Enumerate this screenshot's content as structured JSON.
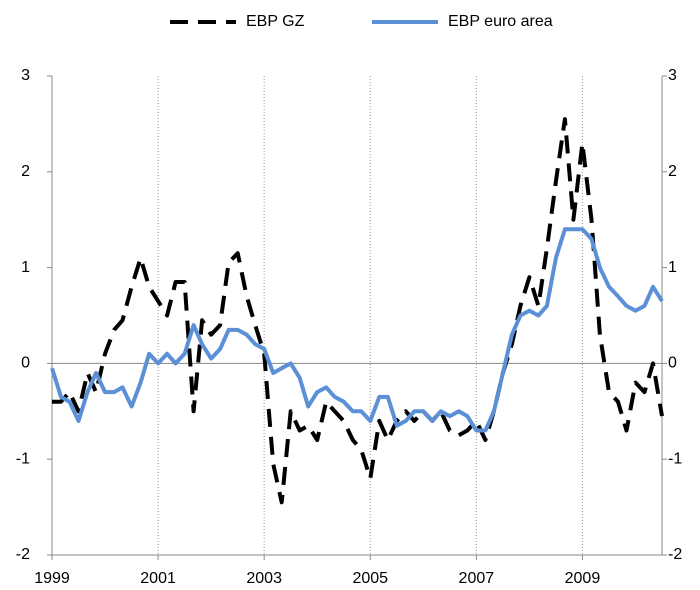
{
  "chart_data": {
    "type": "line",
    "x": [
      1999.0,
      1999.17,
      1999.33,
      1999.5,
      1999.67,
      1999.83,
      2000.0,
      2000.17,
      2000.33,
      2000.5,
      2000.67,
      2000.83,
      2001.0,
      2001.17,
      2001.33,
      2001.5,
      2001.67,
      2001.83,
      2002.0,
      2002.17,
      2002.33,
      2002.5,
      2002.67,
      2002.83,
      2003.0,
      2003.17,
      2003.33,
      2003.5,
      2003.67,
      2003.83,
      2004.0,
      2004.17,
      2004.33,
      2004.5,
      2004.67,
      2004.83,
      2005.0,
      2005.17,
      2005.33,
      2005.5,
      2005.67,
      2005.83,
      2006.0,
      2006.17,
      2006.33,
      2006.5,
      2006.67,
      2006.83,
      2007.0,
      2007.17,
      2007.33,
      2007.5,
      2007.67,
      2007.83,
      2008.0,
      2008.17,
      2008.33,
      2008.5,
      2008.67,
      2008.83,
      2009.0,
      2009.17,
      2009.33,
      2009.5,
      2009.67,
      2009.83,
      2010.0,
      2010.17,
      2010.33,
      2010.5
    ],
    "series": [
      {
        "name": "EBP GZ",
        "color": "#000000",
        "dashed": true,
        "values": [
          -0.4,
          -0.4,
          -0.3,
          -0.5,
          -0.1,
          -0.3,
          0.1,
          0.35,
          0.45,
          0.8,
          1.1,
          0.8,
          0.65,
          0.5,
          0.85,
          0.85,
          -0.5,
          0.45,
          0.3,
          0.4,
          1.05,
          1.15,
          0.7,
          0.4,
          0.1,
          -1.05,
          -1.45,
          -0.5,
          -0.7,
          -0.65,
          -0.8,
          -0.4,
          -0.5,
          -0.6,
          -0.8,
          -0.9,
          -1.2,
          -0.6,
          -0.8,
          -0.6,
          -0.5,
          -0.6,
          -0.5,
          -0.6,
          -0.5,
          -0.7,
          -0.75,
          -0.7,
          -0.6,
          -0.8,
          -0.5,
          -0.1,
          0.2,
          0.6,
          0.9,
          0.6,
          1.2,
          1.9,
          2.55,
          1.5,
          2.3,
          1.5,
          0.3,
          -0.3,
          -0.4,
          -0.7,
          -0.2,
          -0.3,
          0.0,
          -0.55
        ]
      },
      {
        "name": "EBP euro area",
        "color": "#5b8fd6",
        "dashed": false,
        "values": [
          -0.05,
          -0.35,
          -0.4,
          -0.6,
          -0.3,
          -0.1,
          -0.3,
          -0.3,
          -0.25,
          -0.45,
          -0.2,
          0.1,
          0.0,
          0.1,
          0.0,
          0.1,
          0.4,
          0.2,
          0.05,
          0.15,
          0.35,
          0.35,
          0.3,
          0.2,
          0.15,
          -0.1,
          -0.05,
          0.0,
          -0.15,
          -0.45,
          -0.3,
          -0.25,
          -0.35,
          -0.4,
          -0.5,
          -0.5,
          -0.6,
          -0.35,
          -0.35,
          -0.65,
          -0.6,
          -0.5,
          -0.5,
          -0.6,
          -0.5,
          -0.55,
          -0.5,
          -0.55,
          -0.7,
          -0.7,
          -0.5,
          -0.1,
          0.3,
          0.5,
          0.55,
          0.5,
          0.6,
          1.1,
          1.4,
          1.4,
          1.4,
          1.3,
          1.0,
          0.8,
          0.7,
          0.6,
          0.55,
          0.6,
          0.8,
          0.65
        ]
      }
    ],
    "xlim": [
      1999,
      2010.5
    ],
    "xticks": [
      1999,
      2001,
      2003,
      2005,
      2007,
      2009
    ],
    "ylim": [
      -2,
      3
    ],
    "yticks": [
      -2,
      -1,
      0,
      1,
      2,
      3
    ],
    "y2lim": [
      -2,
      3
    ],
    "y2ticks": [
      -2,
      -1,
      0,
      1,
      2,
      3
    ],
    "grid": "x",
    "legend": "top"
  }
}
